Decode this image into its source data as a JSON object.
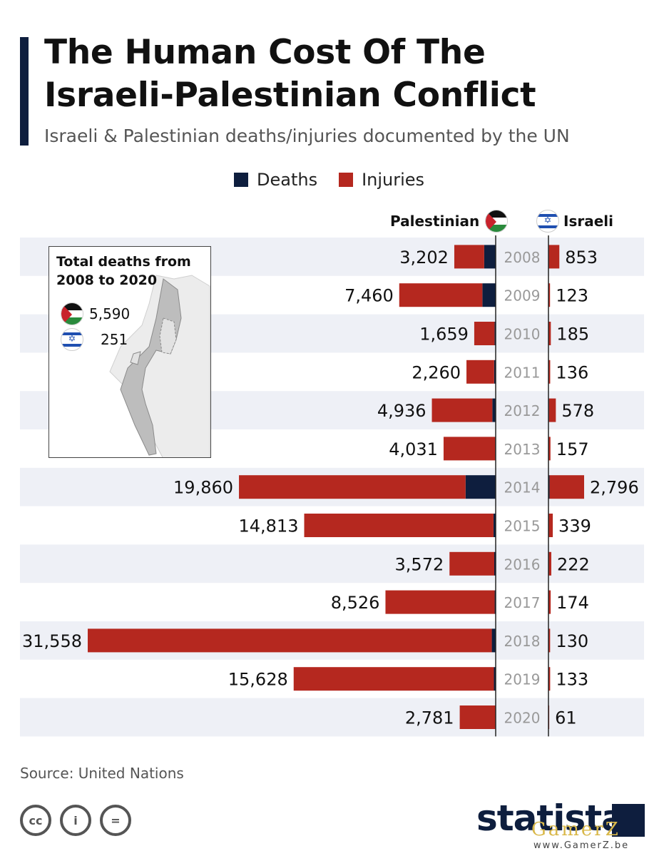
{
  "header": {
    "title_line1": "The Human Cost Of The",
    "title_line2": "Israeli-Palestinian Conflict",
    "subtitle": "Israeli & Palestinian deaths/injuries documented by the UN"
  },
  "legend": {
    "deaths_label": "Deaths",
    "injuries_label": "Injuries",
    "deaths_color": "#0e1e3e",
    "injuries_color": "#b5281f"
  },
  "columns": {
    "left_label": "Palestinian",
    "right_label": "Israeli"
  },
  "inset": {
    "title_line1": "Total deaths from",
    "title_line2": "2008 to 2020",
    "palestinian_total": "5,590",
    "israeli_total": "251"
  },
  "chart_data": {
    "type": "bar",
    "orientation": "horizontal-diverging",
    "categories": [
      "2008",
      "2009",
      "2010",
      "2011",
      "2012",
      "2013",
      "2014",
      "2015",
      "2016",
      "2017",
      "2018",
      "2019",
      "2020"
    ],
    "palestinian_total_labels": [
      "3,202",
      "7,460",
      "1,659",
      "2,260",
      "4,936",
      "4,031",
      "19,860",
      "14,813",
      "3,572",
      "8,526",
      "31,558",
      "15,628",
      "2,781"
    ],
    "israeli_total_labels": [
      "853",
      "123",
      "185",
      "136",
      "578",
      "157",
      "2,796",
      "339",
      "222",
      "174",
      "130",
      "133",
      "61"
    ],
    "series": [
      {
        "name": "Palestinian Deaths",
        "values": [
          890,
          1030,
          90,
          120,
          260,
          40,
          2330,
          170,
          110,
          80,
          300,
          140,
          30
        ]
      },
      {
        "name": "Palestinian Injuries",
        "values": [
          2312,
          6430,
          1569,
          2140,
          4676,
          3991,
          17530,
          14643,
          3462,
          8446,
          31258,
          15488,
          2751
        ]
      },
      {
        "name": "Israeli Deaths",
        "values": [
          35,
          9,
          9,
          11,
          44,
          6,
          88,
          25,
          17,
          15,
          12,
          10,
          3
        ]
      },
      {
        "name": "Israeli Injuries",
        "values": [
          818,
          114,
          176,
          125,
          534,
          151,
          2708,
          314,
          205,
          159,
          118,
          123,
          58
        ]
      }
    ]
  },
  "footer": {
    "source": "Source: United Nations",
    "cc_label": "cc",
    "by_label": "i",
    "nd_label": "=",
    "brand": "statista",
    "watermark": "GamerZ",
    "watermark_url": "www.GamerZ.be"
  }
}
